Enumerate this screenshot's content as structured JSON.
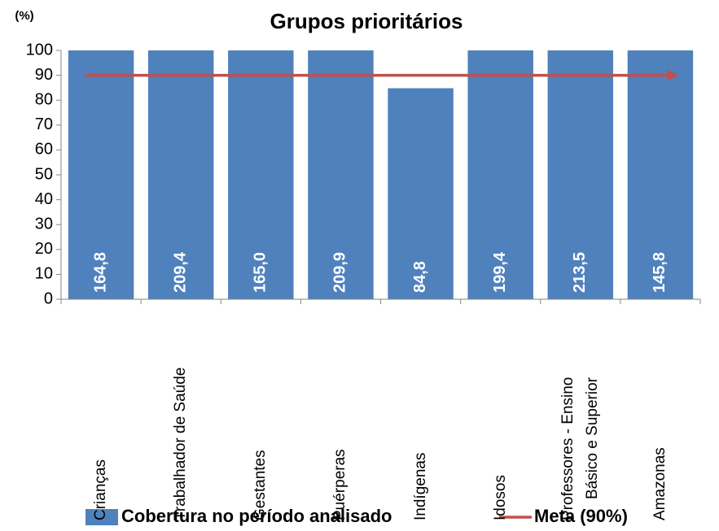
{
  "chart_data": {
    "type": "bar",
    "title": "Grupos prioritários",
    "y_label": "(%)",
    "categories": [
      "Crianças",
      "Trabalhador de Saúde",
      "Gestantes",
      "Puérperas",
      "Indígenas",
      "Idosos",
      "Professores - Ensino\nBásico e Superior",
      "Amazonas"
    ],
    "series": [
      {
        "name": "Cobertura no período analisado",
        "color": "#4f81bd",
        "values": [
          164.8,
          209.4,
          165.0,
          209.9,
          84.8,
          199.4,
          213.5,
          145.8
        ],
        "value_labels": [
          "164,8",
          "209,4",
          "165,0",
          "209,9",
          "84,8",
          "199,4",
          "213,5",
          "145,8"
        ]
      }
    ],
    "target": {
      "name": "Meta (90%)",
      "color": "#c0504d",
      "value": 90
    },
    "ylim": [
      0,
      100
    ],
    "yticks": [
      0,
      10,
      20,
      30,
      40,
      50,
      60,
      70,
      80,
      90,
      100
    ],
    "legend": "bottom"
  }
}
